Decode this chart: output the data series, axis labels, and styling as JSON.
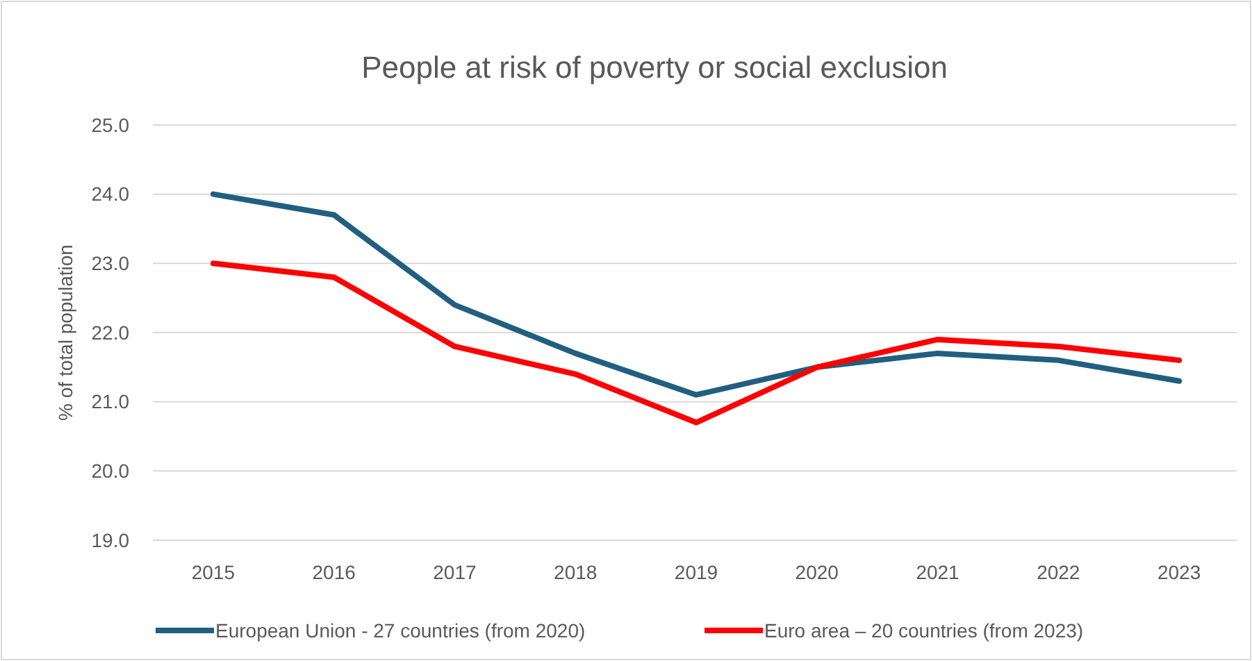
{
  "chart_data": {
    "type": "line",
    "title": "People at risk of poverty or social exclusion",
    "ylabel": "% of total population",
    "categories": [
      "2015",
      "2016",
      "2017",
      "2018",
      "2019",
      "2020",
      "2021",
      "2022",
      "2023"
    ],
    "series": [
      {
        "name": "European Union - 27 countries (from 2020)",
        "color": "#215f7f",
        "values": [
          24.0,
          23.7,
          22.4,
          21.7,
          21.1,
          21.5,
          21.7,
          21.6,
          21.3
        ]
      },
      {
        "name": "Euro area – 20 countries (from 2023)",
        "color": "#ff0000",
        "values": [
          23.0,
          22.8,
          21.8,
          21.4,
          20.7,
          21.5,
          21.9,
          21.8,
          21.6
        ]
      }
    ],
    "ylim": [
      19,
      25
    ],
    "yticks": [
      {
        "value": 19,
        "label": "19.0"
      },
      {
        "value": 20,
        "label": "20.0"
      },
      {
        "value": 21,
        "label": "21.0"
      },
      {
        "value": 22,
        "label": "22.0"
      },
      {
        "value": 23,
        "label": "23.0"
      },
      {
        "value": 24,
        "label": "24.0"
      },
      {
        "value": 25,
        "label": "25.0"
      }
    ],
    "grid": "y",
    "legend": "bottom",
    "marker": "none",
    "line_style": "solid"
  }
}
